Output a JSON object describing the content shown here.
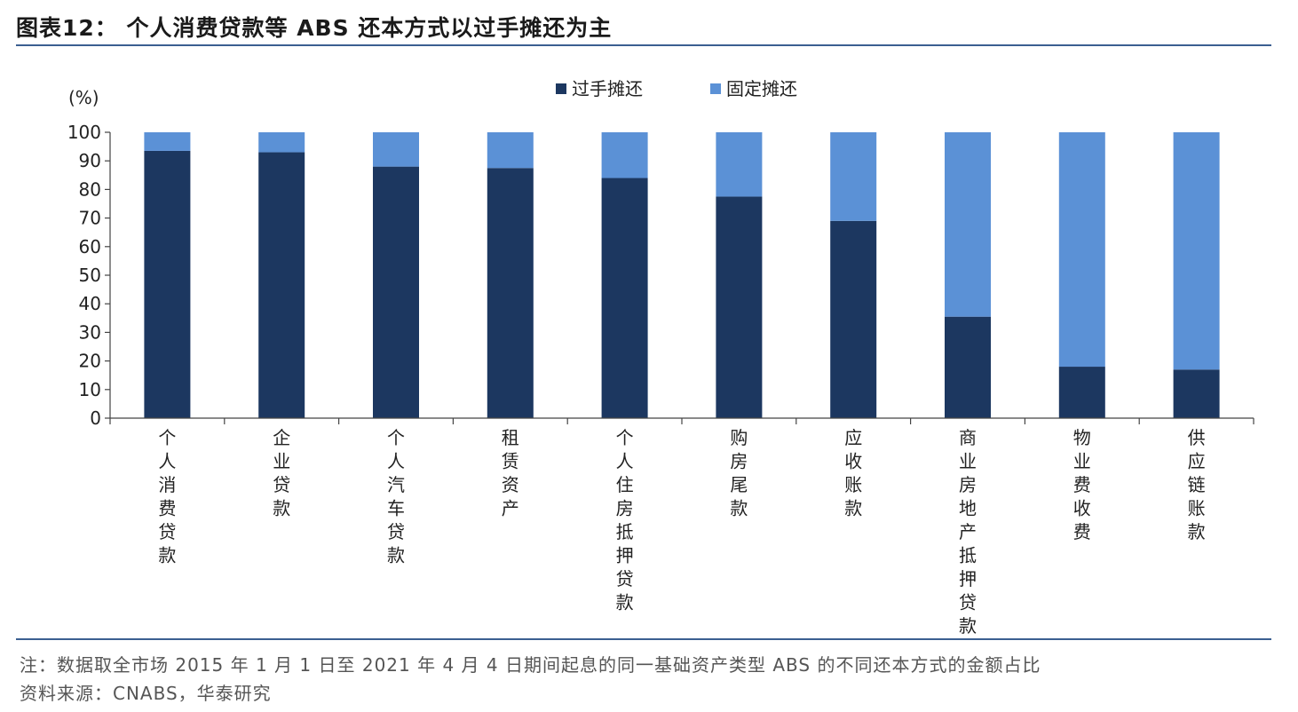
{
  "title": "图表12： 个人消费贷款等 ABS 还本方式以过手摊还为主",
  "note": "注：数据取全市场 2015 年 1 月 1 日至 2021 年 4 月 4 日期间起息的同一基础资产类型 ABS 的不同还本方式的金额占比",
  "source": "资料来源：CNABS，华泰研究",
  "colors": {
    "pass_through": "#1c3760",
    "fixed": "#5b91d6"
  },
  "chart_data": {
    "type": "bar",
    "stacked": true,
    "y_unit_label": "(%)",
    "ylim": [
      0,
      100
    ],
    "yticks": [
      0,
      10,
      20,
      30,
      40,
      50,
      60,
      70,
      80,
      90,
      100
    ],
    "grid": false,
    "legend_position": "top-center",
    "categories": [
      "个人消费贷款",
      "企业贷款",
      "个人汽车贷款",
      "租赁资产",
      "个人住房抵押贷款",
      "购房尾款",
      "应收账款",
      "商业房地产抵押贷款",
      "物业费收费",
      "供应链账款"
    ],
    "series": [
      {
        "name": "过手摊还",
        "color": "#1c3760",
        "values": [
          93.5,
          93,
          88,
          87.5,
          84,
          77.5,
          69,
          35.5,
          18,
          17
        ]
      },
      {
        "name": "固定摊还",
        "color": "#5b91d6",
        "values": [
          6.5,
          7,
          12,
          12.5,
          16,
          22.5,
          31,
          64.5,
          82,
          83
        ]
      }
    ]
  }
}
